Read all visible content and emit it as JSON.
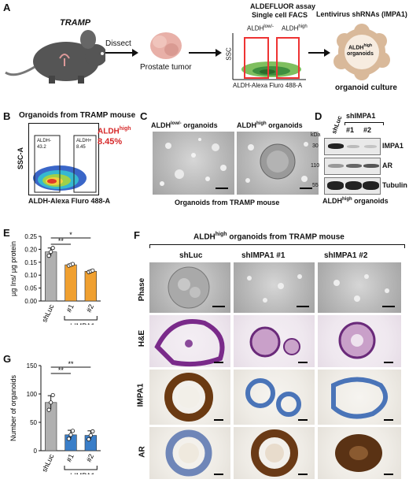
{
  "panel_letters": {
    "a": "A",
    "b": "B",
    "c": "C",
    "d": "D",
    "e": "E",
    "f": "F",
    "g": "G"
  },
  "panelA": {
    "mouse_label": "TRAMP",
    "dissect": "Dissect",
    "prostate_tumor": "Prostate tumor",
    "assay_title_1": "ALDEFLUOR assay",
    "assay_title_2": "Single cell FACS",
    "aldh_low": "ALDH",
    "aldh_low_sup": "low/-",
    "aldh_high": "ALDH",
    "aldh_high_sup": "high",
    "ssc": "SSC",
    "xaxis": "ALDH-Alexa Fluro 488-A",
    "lenti": "Lentivirus shRNAs (IMPA1)",
    "organoid_inner": "ALDH",
    "organoid_inner_sup": "high",
    "organoid_inner_2": "organoids",
    "organoid_culture": "organoid culture"
  },
  "panelB": {
    "title": "Organoids from TRAMP mouse",
    "ylabel": "SSC-A",
    "xlabel": "ALDH-Alexa Fluro 488-A",
    "gate_left_name": "ALDH-",
    "gate_left_val": "43.2",
    "gate_right_name": "ALDH+",
    "gate_right_val": "8.45",
    "highlight_name": "ALDH",
    "highlight_sup": "high",
    "highlight_val": "8.45%",
    "highlight_color": "#d62728"
  },
  "panelC": {
    "left_title": "ALDH",
    "left_sup": "low/-",
    "left_tail": " organoids",
    "right_title": "ALDH",
    "right_sup": "high",
    "right_tail": " organoids",
    "caption": "Organoids from TRAMP mouse"
  },
  "panelD": {
    "kda": "kDa",
    "lane_shluc": "shLuc",
    "group": "shIMPA1",
    "lane1": "#1",
    "lane2": "#2",
    "mw": [
      "30",
      "110",
      "55"
    ],
    "rows": [
      "IMPA1",
      "AR",
      "Tubulin"
    ],
    "caption": "ALDH",
    "caption_sup": "high",
    "caption_tail": " organoids"
  },
  "panelF": {
    "title": "ALDH",
    "title_sup": "high",
    "title_tail": " organoids from TRAMP mouse",
    "cols": [
      "shLuc",
      "shIMPA1 #1",
      "shIMPA1 #2"
    ],
    "rows": [
      "Phase",
      "H&E",
      "IMPA1",
      "AR"
    ]
  },
  "chart_data": [
    {
      "type": "bar",
      "panel": "E",
      "categories": [
        "shLuc",
        "#1",
        "#2"
      ],
      "group_label": "shIMPA1",
      "values": [
        0.19,
        0.14,
        0.115
      ],
      "errors": [
        0.015,
        0.003,
        0.003
      ],
      "points": [
        [
          0.175,
          0.19,
          0.205
        ],
        [
          0.137,
          0.14,
          0.143
        ],
        [
          0.112,
          0.115,
          0.118
        ]
      ],
      "colors": [
        "#b0b0b0",
        "#f0a030",
        "#f0a030"
      ],
      "ylabel": "µg Ins/ µg protein",
      "ylim": [
        0,
        0.25
      ],
      "yticks": [
        "0.00",
        "0.05",
        "0.10",
        "0.15",
        "0.20",
        "0.25"
      ],
      "significance": [
        "**",
        "*"
      ]
    },
    {
      "type": "bar",
      "panel": "G",
      "categories": [
        "shLuc",
        "#1",
        "#2"
      ],
      "group_label": "shIMPA1",
      "values": [
        85,
        28,
        27
      ],
      "errors": [
        12,
        8,
        8
      ],
      "points": [
        [
          72,
          85,
          98
        ],
        [
          21,
          28,
          35
        ],
        [
          20,
          27,
          34
        ]
      ],
      "colors": [
        "#b0b0b0",
        "#3a7ec8",
        "#3a7ec8"
      ],
      "ylabel": "Number of organoids",
      "ylim": [
        0,
        150
      ],
      "yticks": [
        "0",
        "50",
        "100",
        "150"
      ],
      "significance": [
        "**",
        "**"
      ]
    }
  ]
}
